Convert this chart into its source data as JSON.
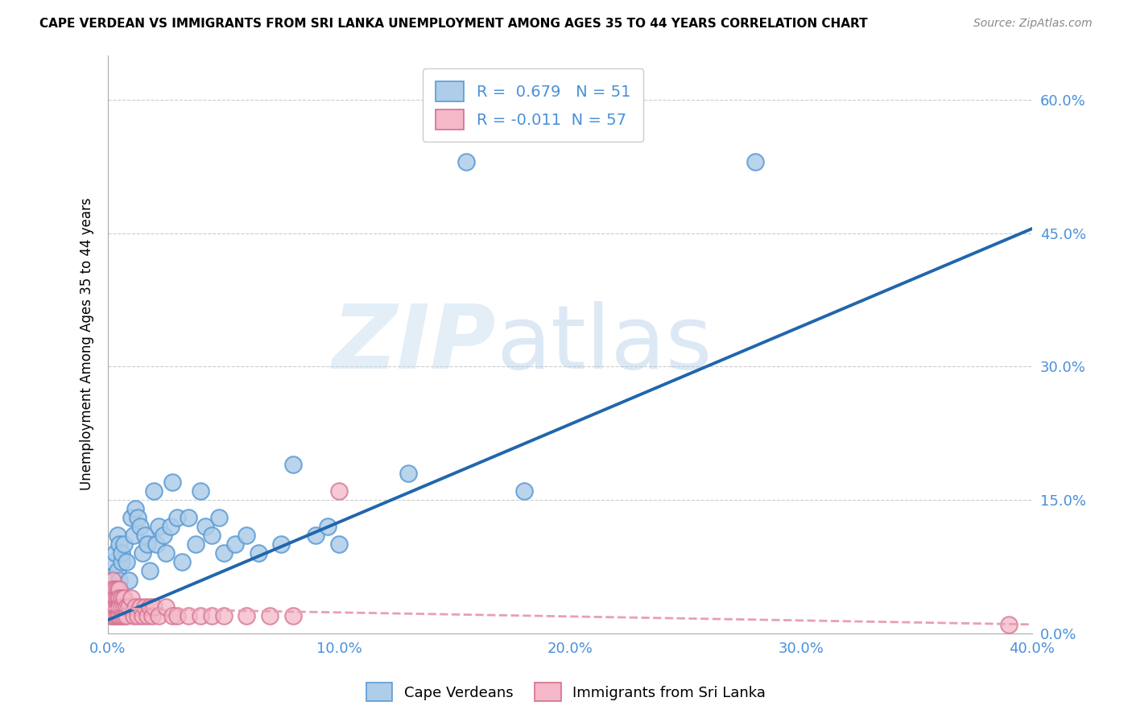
{
  "title": "CAPE VERDEAN VS IMMIGRANTS FROM SRI LANKA UNEMPLOYMENT AMONG AGES 35 TO 44 YEARS CORRELATION CHART",
  "source": "Source: ZipAtlas.com",
  "ylabel": "Unemployment Among Ages 35 to 44 years",
  "watermark_zip": "ZIP",
  "watermark_atlas": "atlas",
  "legend_blue_label": "Cape Verdeans",
  "legend_pink_label": "Immigrants from Sri Lanka",
  "R_blue": 0.679,
  "N_blue": 51,
  "R_pink": -0.011,
  "N_pink": 57,
  "blue_color": "#aecde8",
  "blue_edge_color": "#5b9bd5",
  "pink_color": "#f4b8c8",
  "pink_edge_color": "#d47090",
  "blue_line_color": "#2166ac",
  "pink_line_color": "#e8a0b0",
  "xlim": [
    0.0,
    0.4
  ],
  "ylim": [
    0.0,
    0.65
  ],
  "xticks": [
    0.0,
    0.1,
    0.2,
    0.3,
    0.4
  ],
  "yticks_right": [
    0.0,
    0.15,
    0.3,
    0.45,
    0.6
  ],
  "blue_scatter_x": [
    0.001,
    0.002,
    0.002,
    0.003,
    0.003,
    0.004,
    0.004,
    0.005,
    0.005,
    0.006,
    0.006,
    0.007,
    0.008,
    0.009,
    0.01,
    0.011,
    0.012,
    0.013,
    0.014,
    0.015,
    0.016,
    0.017,
    0.018,
    0.02,
    0.021,
    0.022,
    0.024,
    0.025,
    0.027,
    0.028,
    0.03,
    0.032,
    0.035,
    0.038,
    0.04,
    0.042,
    0.045,
    0.048,
    0.05,
    0.055,
    0.06,
    0.065,
    0.075,
    0.08,
    0.09,
    0.095,
    0.1,
    0.13,
    0.155,
    0.18,
    0.28
  ],
  "blue_scatter_y": [
    0.04,
    0.06,
    0.08,
    0.05,
    0.09,
    0.07,
    0.11,
    0.06,
    0.1,
    0.08,
    0.09,
    0.1,
    0.08,
    0.06,
    0.13,
    0.11,
    0.14,
    0.13,
    0.12,
    0.09,
    0.11,
    0.1,
    0.07,
    0.16,
    0.1,
    0.12,
    0.11,
    0.09,
    0.12,
    0.17,
    0.13,
    0.08,
    0.13,
    0.1,
    0.16,
    0.12,
    0.11,
    0.13,
    0.09,
    0.1,
    0.11,
    0.09,
    0.1,
    0.19,
    0.11,
    0.12,
    0.1,
    0.18,
    0.53,
    0.16,
    0.53
  ],
  "pink_scatter_x": [
    0.001,
    0.001,
    0.001,
    0.001,
    0.002,
    0.002,
    0.002,
    0.002,
    0.002,
    0.003,
    0.003,
    0.003,
    0.003,
    0.003,
    0.004,
    0.004,
    0.004,
    0.004,
    0.004,
    0.005,
    0.005,
    0.005,
    0.005,
    0.005,
    0.006,
    0.006,
    0.006,
    0.007,
    0.007,
    0.007,
    0.008,
    0.008,
    0.009,
    0.01,
    0.011,
    0.012,
    0.013,
    0.014,
    0.015,
    0.016,
    0.017,
    0.018,
    0.019,
    0.02,
    0.022,
    0.025,
    0.028,
    0.03,
    0.035,
    0.04,
    0.045,
    0.05,
    0.06,
    0.07,
    0.08,
    0.1,
    0.39
  ],
  "pink_scatter_y": [
    0.03,
    0.05,
    0.02,
    0.04,
    0.06,
    0.03,
    0.05,
    0.02,
    0.04,
    0.03,
    0.05,
    0.02,
    0.04,
    0.03,
    0.05,
    0.03,
    0.02,
    0.04,
    0.03,
    0.05,
    0.03,
    0.02,
    0.04,
    0.03,
    0.04,
    0.02,
    0.03,
    0.03,
    0.02,
    0.04,
    0.03,
    0.02,
    0.03,
    0.04,
    0.02,
    0.03,
    0.02,
    0.03,
    0.02,
    0.03,
    0.02,
    0.03,
    0.02,
    0.03,
    0.02,
    0.03,
    0.02,
    0.02,
    0.02,
    0.02,
    0.02,
    0.02,
    0.02,
    0.02,
    0.02,
    0.16,
    0.01
  ]
}
